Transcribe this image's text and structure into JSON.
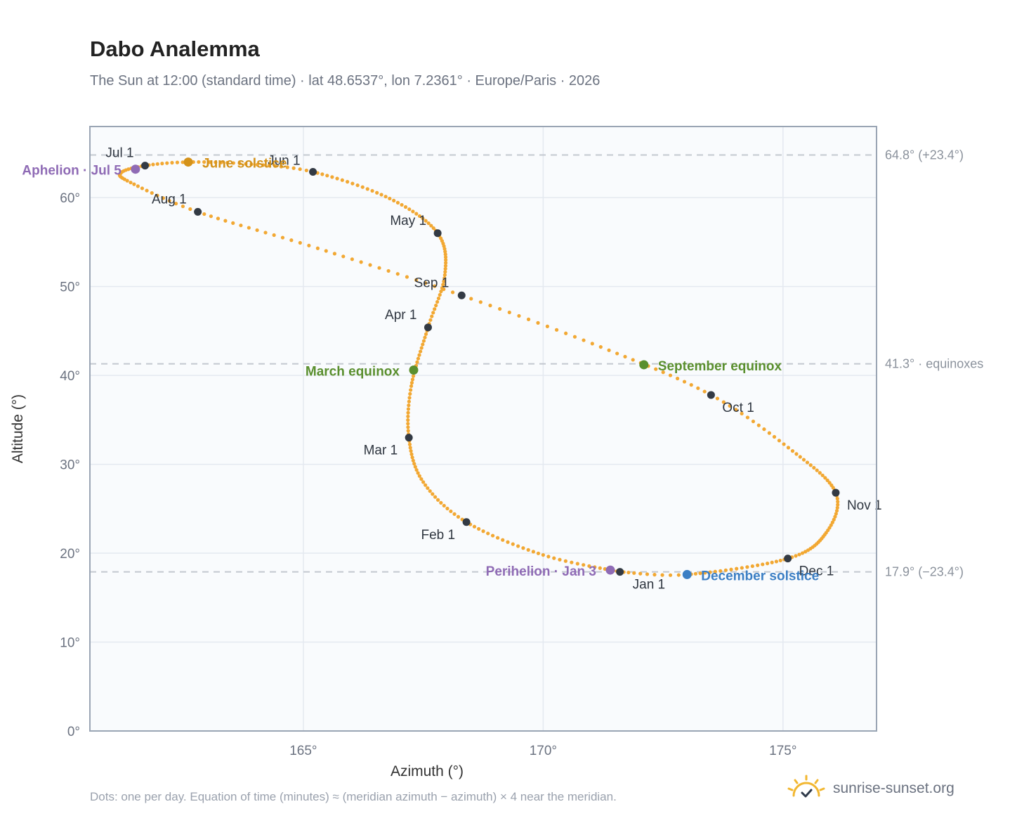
{
  "page": {
    "title": "Dabo Analemma",
    "subtitle": "The Sun at 12:00 (standard time) · lat 48.6537°, lon 7.2361° · Europe/Paris · 2026",
    "footnote": "Dots: one per day. Equation of time (minutes) ≈ (meridian azimuth − azimuth) × 4 near the meridian.",
    "brand": "sunrise-sunset.org"
  },
  "chart_data": {
    "type": "scatter",
    "xlabel": "Azimuth (°)",
    "ylabel": "Altitude (°)",
    "xlim": [
      160.55,
      176.95
    ],
    "ylim": [
      0,
      68
    ],
    "x_ticks": [
      165,
      170,
      175
    ],
    "x_tick_labels": [
      "165°",
      "170°",
      "175°"
    ],
    "y_ticks": [
      0,
      10,
      20,
      30,
      40,
      50,
      60
    ],
    "y_tick_labels": [
      "0°",
      "10°",
      "20°",
      "30°",
      "40°",
      "50°",
      "60°"
    ],
    "grid": true,
    "reference_lines": [
      {
        "y": 64.8,
        "label": "64.8° (+23.4°)"
      },
      {
        "y": 41.3,
        "label": "41.3° · equinoxes"
      },
      {
        "y": 17.9,
        "label": "17.9° (−23.4°)"
      }
    ],
    "path_color": "#f2a833",
    "month_markers": [
      {
        "label": "Jan 1",
        "az": 171.6,
        "alt": 17.9
      },
      {
        "label": "Feb 1",
        "az": 168.4,
        "alt": 23.5
      },
      {
        "label": "Mar 1",
        "az": 167.2,
        "alt": 33.0
      },
      {
        "label": "Apr 1",
        "az": 167.6,
        "alt": 45.4
      },
      {
        "label": "May 1",
        "az": 167.8,
        "alt": 56.0
      },
      {
        "label": "Jun 1",
        "az": 165.2,
        "alt": 62.9
      },
      {
        "label": "Jul 1",
        "az": 161.7,
        "alt": 63.6
      },
      {
        "label": "Aug 1",
        "az": 162.8,
        "alt": 58.4
      },
      {
        "label": "Sep 1",
        "az": 168.3,
        "alt": 49.0
      },
      {
        "label": "Oct 1",
        "az": 173.5,
        "alt": 37.8
      },
      {
        "label": "Nov 1",
        "az": 176.1,
        "alt": 26.8
      },
      {
        "label": "Dec 1",
        "az": 175.1,
        "alt": 19.4
      }
    ],
    "events": [
      {
        "label": "June solstice",
        "az": 162.6,
        "alt": 64.0,
        "color": "#d4921a"
      },
      {
        "label": "Aphelion · Jul 5",
        "az": 161.5,
        "alt": 63.2,
        "color": "#8f6bb5"
      },
      {
        "label": "March equinox",
        "az": 167.3,
        "alt": 40.6,
        "color": "#5a8f2e"
      },
      {
        "label": "September equinox",
        "az": 172.1,
        "alt": 41.2,
        "color": "#5a8f2e"
      },
      {
        "label": "Perihelion · Jan 3",
        "az": 171.4,
        "alt": 18.1,
        "color": "#8f6bb5"
      },
      {
        "label": "December solstice",
        "az": 173.0,
        "alt": 17.6,
        "color": "#3c7fc4"
      }
    ],
    "path_anchors": [
      {
        "day": 0,
        "az": 171.6,
        "alt": 17.9
      },
      {
        "day": 15,
        "az": 170.0,
        "alt": 19.8
      },
      {
        "day": 31,
        "az": 168.4,
        "alt": 23.5
      },
      {
        "day": 45,
        "az": 167.5,
        "alt": 28.0
      },
      {
        "day": 59,
        "az": 167.2,
        "alt": 33.0
      },
      {
        "day": 73,
        "az": 167.25,
        "alt": 38.8
      },
      {
        "day": 90,
        "az": 167.6,
        "alt": 45.4
      },
      {
        "day": 105,
        "az": 167.95,
        "alt": 51.3
      },
      {
        "day": 120,
        "az": 167.8,
        "alt": 56.0
      },
      {
        "day": 135,
        "az": 166.8,
        "alt": 59.9
      },
      {
        "day": 151,
        "az": 165.2,
        "alt": 62.9
      },
      {
        "day": 162,
        "az": 163.8,
        "alt": 63.8
      },
      {
        "day": 172,
        "az": 162.6,
        "alt": 64.0
      },
      {
        "day": 181,
        "az": 161.7,
        "alt": 63.6
      },
      {
        "day": 190,
        "az": 161.2,
        "alt": 62.8
      },
      {
        "day": 200,
        "az": 161.4,
        "alt": 61.7
      },
      {
        "day": 212,
        "az": 162.8,
        "alt": 58.4
      },
      {
        "day": 227,
        "az": 165.3,
        "alt": 54.3
      },
      {
        "day": 243,
        "az": 168.3,
        "alt": 49.0
      },
      {
        "day": 258,
        "az": 171.2,
        "alt": 43.2
      },
      {
        "day": 273,
        "az": 173.5,
        "alt": 37.8
      },
      {
        "day": 288,
        "az": 175.2,
        "alt": 31.5
      },
      {
        "day": 304,
        "az": 176.1,
        "alt": 26.8
      },
      {
        "day": 318,
        "az": 175.9,
        "alt": 22.3
      },
      {
        "day": 334,
        "az": 175.1,
        "alt": 19.4
      },
      {
        "day": 355,
        "az": 173.0,
        "alt": 17.6
      },
      {
        "day": 365,
        "az": 171.6,
        "alt": 17.9
      }
    ]
  }
}
